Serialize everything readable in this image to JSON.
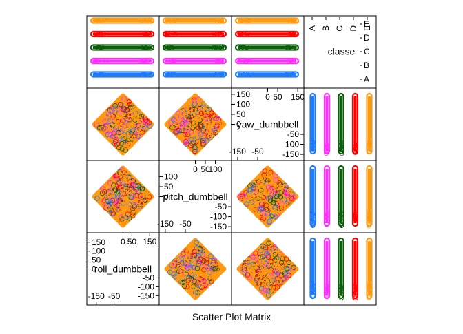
{
  "chart_data": {
    "type": "scatter",
    "title": "",
    "xlabel": "Scatter Plot Matrix",
    "variables": [
      {
        "name": "roll_dumbbell",
        "range": [
          -180,
          180
        ],
        "ticks_low": [
          "-150",
          "-50"
        ],
        "ticks_high": [
          "0",
          "50",
          "150"
        ],
        "ticks_left": [
          "150",
          "100",
          "50",
          "0",
          "-50",
          "-100",
          "-150"
        ],
        "tick_values_left": [
          150,
          100,
          50,
          0,
          -50,
          -100,
          -150
        ]
      },
      {
        "name": "pitch_dumbbell",
        "range": [
          -160,
          160
        ],
        "ticks_low": [
          "-150",
          "-50"
        ],
        "ticks_high": [
          "0",
          "50",
          "100"
        ],
        "ticks_left": [
          "100",
          "50",
          "0",
          "-50",
          "-100",
          "-150"
        ],
        "tick_values_left": [
          100,
          50,
          0,
          -50,
          -100,
          -150
        ]
      },
      {
        "name": "yaw_dumbbell",
        "range": [
          -160,
          160
        ],
        "ticks_low": [
          "-150",
          "-50"
        ],
        "ticks_high": [
          "0",
          "50",
          "150"
        ],
        "ticks_left": [
          "150",
          "100",
          "50",
          "0",
          "-50",
          "-100",
          "-150"
        ],
        "tick_values_left": [
          150,
          100,
          50,
          0,
          -50,
          -100,
          -150
        ]
      },
      {
        "name": "classe",
        "categories": [
          "A",
          "B",
          "C",
          "D",
          "E"
        ]
      }
    ],
    "series": [
      {
        "name": "A",
        "color": "#1E7BFF"
      },
      {
        "name": "B",
        "color": "#FF2EFF"
      },
      {
        "name": "C",
        "color": "#0B5E0B"
      },
      {
        "name": "D",
        "color": "#FF0000"
      },
      {
        "name": "E",
        "color": "#FF9912"
      }
    ],
    "legend": "none",
    "grid": false
  }
}
